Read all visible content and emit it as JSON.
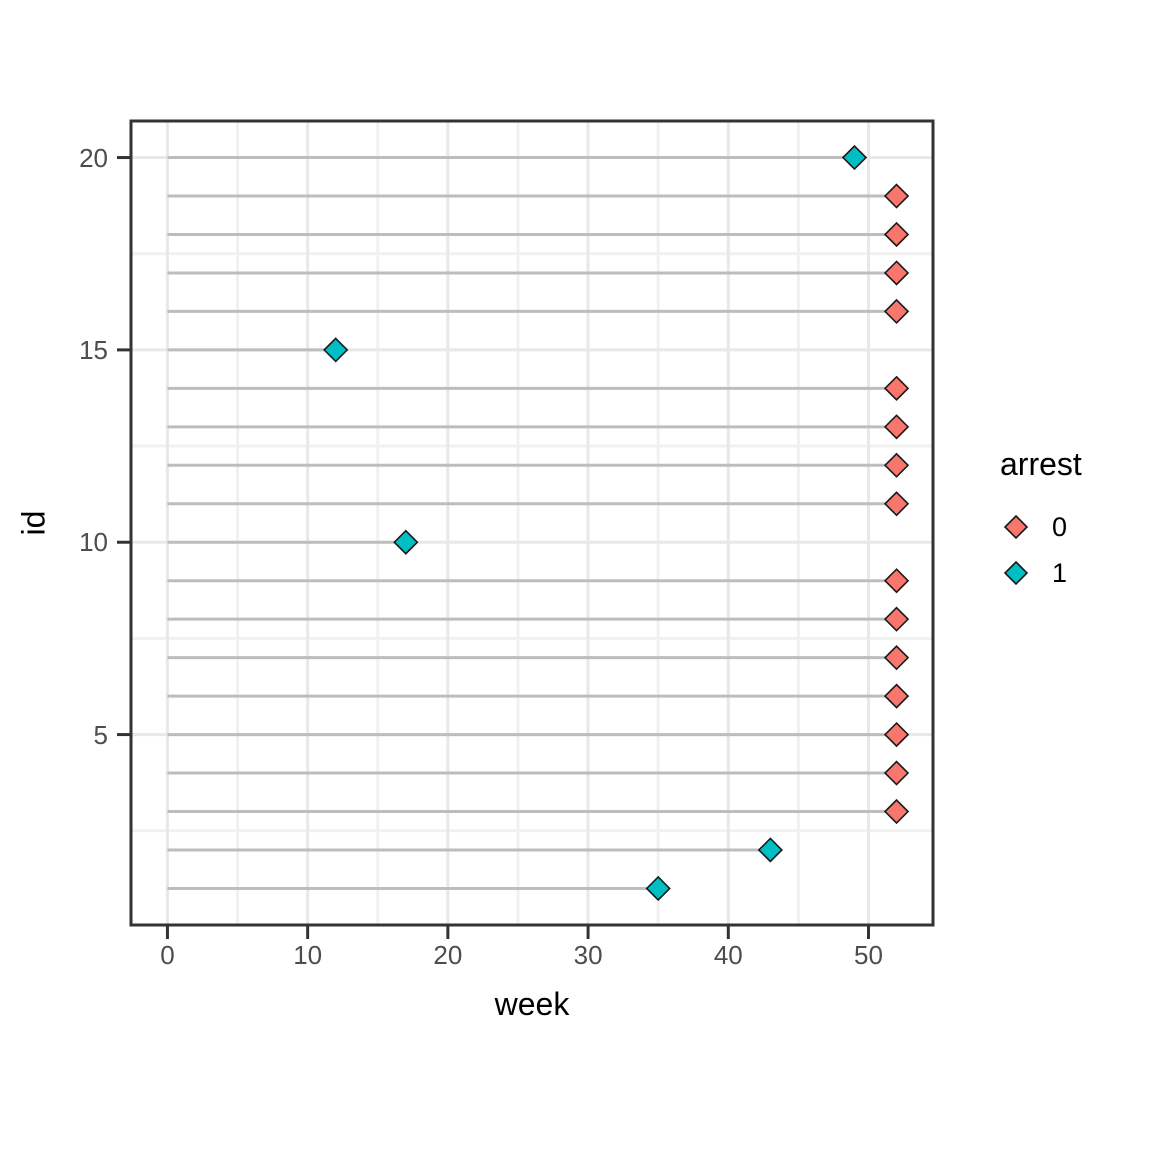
{
  "figure": {
    "background": "#ffffff",
    "panel_border_color": "#333333",
    "tick_color": "#333333",
    "tick_label_color": "#4d4d4d",
    "grid_major_color": "#e8e8e8",
    "grid_minor_color": "#f1f1f1",
    "segment_color": "#bdbdbd",
    "marker_outline_color": "#1a1a1a"
  },
  "chart_data": {
    "type": "scatter",
    "title": "",
    "xlabel": "week",
    "ylabel": "id",
    "xlim": [
      -2.6,
      54.6
    ],
    "ylim": [
      0.05,
      20.95
    ],
    "x_ticks": [
      0,
      10,
      20,
      30,
      40,
      50
    ],
    "y_ticks": [
      5,
      10,
      15,
      20
    ],
    "x_minor": [
      5,
      15,
      25,
      35,
      45
    ],
    "y_minor": [
      2.5,
      7.5,
      12.5,
      17.5
    ],
    "grid": "on",
    "marker": "diamond",
    "segment_from_x": 0,
    "points": [
      {
        "id": 1,
        "week": 35,
        "arrest": "1"
      },
      {
        "id": 2,
        "week": 43,
        "arrest": "1"
      },
      {
        "id": 3,
        "week": 52,
        "arrest": "0"
      },
      {
        "id": 4,
        "week": 52,
        "arrest": "0"
      },
      {
        "id": 5,
        "week": 52,
        "arrest": "0"
      },
      {
        "id": 6,
        "week": 52,
        "arrest": "0"
      },
      {
        "id": 7,
        "week": 52,
        "arrest": "0"
      },
      {
        "id": 8,
        "week": 52,
        "arrest": "0"
      },
      {
        "id": 9,
        "week": 52,
        "arrest": "0"
      },
      {
        "id": 10,
        "week": 17,
        "arrest": "1"
      },
      {
        "id": 11,
        "week": 52,
        "arrest": "0"
      },
      {
        "id": 12,
        "week": 52,
        "arrest": "0"
      },
      {
        "id": 13,
        "week": 52,
        "arrest": "0"
      },
      {
        "id": 14,
        "week": 52,
        "arrest": "0"
      },
      {
        "id": 15,
        "week": 12,
        "arrest": "1"
      },
      {
        "id": 16,
        "week": 52,
        "arrest": "0"
      },
      {
        "id": 17,
        "week": 52,
        "arrest": "0"
      },
      {
        "id": 18,
        "week": 52,
        "arrest": "0"
      },
      {
        "id": 19,
        "week": 52,
        "arrest": "0"
      },
      {
        "id": 20,
        "week": 49,
        "arrest": "1"
      }
    ],
    "legend": {
      "title": "arrest",
      "position": "right",
      "entries": [
        {
          "label": "0",
          "color": "#F8766D"
        },
        {
          "label": "1",
          "color": "#00BFC4"
        }
      ]
    }
  }
}
